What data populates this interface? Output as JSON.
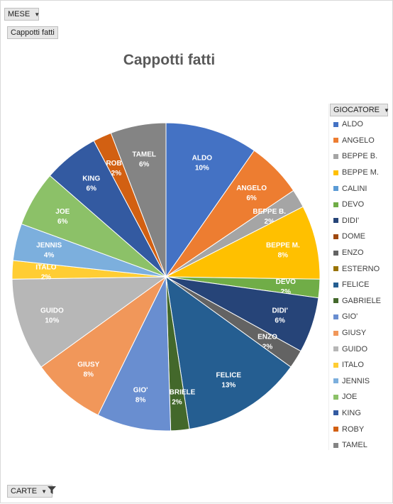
{
  "filters": {
    "month_button": "MESE",
    "values_button": "Cappotti fatti",
    "axis_button": "CARTE",
    "legend_button": "GIOCATORE"
  },
  "icons": {
    "dropdown": "chevron-down-icon",
    "filter": "funnel-icon"
  },
  "chart_data": {
    "type": "pie",
    "title": "Cappotti fatti",
    "legend_title": "GIOCATORE",
    "legend_position": "right",
    "categories": [
      "ALDO",
      "ANGELO",
      "BEPPE B.",
      "BEPPE M.",
      "CALINI",
      "DEVO",
      "DIDI'",
      "DOME",
      "ENZO",
      "ESTERNO",
      "FELICE",
      "GABRIELE",
      "GIO'",
      "GIUSY",
      "GUIDO",
      "ITALO",
      "JENNIS",
      "JOE",
      "KING",
      "ROBY",
      "TAMEL"
    ],
    "values": [
      10,
      6,
      2,
      8,
      0,
      2,
      6,
      0,
      2,
      0,
      13,
      2,
      8,
      8,
      10,
      2,
      4,
      6,
      6,
      2,
      6
    ],
    "data_labels": [
      "10%",
      "6%",
      "2%",
      "8%",
      "",
      "2%",
      "6%",
      "",
      "2%",
      "",
      "13%",
      "2%",
      "8%",
      "8%",
      "10%",
      "2%",
      "4%",
      "6%",
      "6%",
      "2%",
      "6%"
    ],
    "colors": [
      "#4472C4",
      "#ED7D31",
      "#A5A5A5",
      "#FFC000",
      "#5B9BD5",
      "#70AD47",
      "#264478",
      "#9E480E",
      "#636363",
      "#997300",
      "#255E91",
      "#43682B",
      "#698ED0",
      "#F1975A",
      "#B7B7B7",
      "#FFCD33",
      "#7CAFDD",
      "#8CC168",
      "#335AA1",
      "#D26012",
      "#848484"
    ]
  }
}
